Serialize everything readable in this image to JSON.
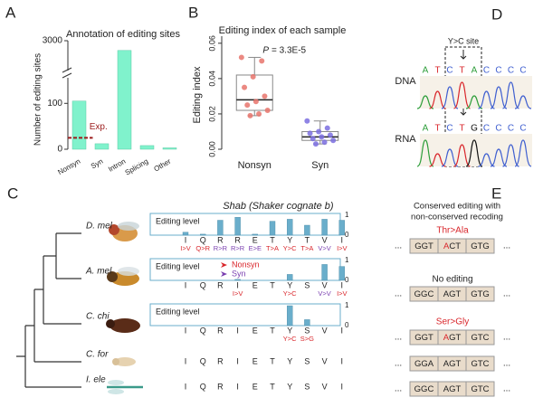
{
  "panel_letters": [
    "A",
    "B",
    "C",
    "D",
    "E"
  ],
  "chart_data": [
    {
      "type": "bar",
      "title": "Annotation of editing sites",
      "y_label": "Number of editing sites",
      "categories": [
        "Nonsyn",
        "Syn",
        "Intron",
        "Splicing",
        "Other"
      ],
      "values": [
        105,
        12,
        2800,
        8,
        3
      ],
      "color": "#80f2cc",
      "ylim": [
        0,
        3000
      ],
      "ybreak": [
        140,
        2500
      ],
      "yticks": [
        0,
        100,
        3000
      ],
      "expected": {
        "label": "Exp.",
        "value": 25,
        "color": "#9b1c1c"
      }
    },
    {
      "type": "box",
      "title": "Editing index of each sample",
      "y_label": "Editing index",
      "annotation": [
        "P",
        "= 3.3E-5"
      ],
      "ylim": [
        0,
        0.064
      ],
      "yticks": [
        {
          "value": 0,
          "label": "0.00"
        },
        0.02,
        0.04,
        0.06
      ],
      "series": [
        {
          "name": "Nonsyn",
          "color": "#e8746c",
          "values": [
            0.052,
            0.05,
            0.041,
            0.035,
            0.03,
            0.027,
            0.025,
            0.022,
            0.02,
            0.019
          ],
          "box": {
            "min": 0.019,
            "q1": 0.022,
            "median": 0.028,
            "q3": 0.042,
            "max": 0.052
          }
        },
        {
          "name": "Syn",
          "color": "#7b6fe0",
          "values": [
            0.016,
            0.012,
            0.01,
            0.009,
            0.008,
            0.007,
            0.006,
            0.005,
            0.004,
            0.003
          ],
          "box": {
            "min": 0.003,
            "q1": 0.005,
            "median": 0.007,
            "q3": 0.01,
            "max": 0.016
          }
        }
      ]
    }
  ],
  "panel_c": {
    "title": "Shab",
    "subtitle": "(Shaker cognate b)",
    "axis_label": "Editing level",
    "ylim": [
      0,
      1
    ],
    "yticks": [
      0,
      1
    ],
    "bar_color": "#6aaecb",
    "legend": [
      {
        "name": "Nonsyn",
        "color": "#d9262b"
      },
      {
        "name": "Syn",
        "color": "#7a3fb0"
      }
    ],
    "species": [
      {
        "name": "D. mel",
        "residues": [
          "I",
          "Q",
          "R",
          "R",
          "E",
          "T",
          "Y",
          "T",
          "V",
          "I"
        ],
        "edits": [
          {
            "position": 0,
            "label": "I>V",
            "value": 0.15,
            "color": "#d9262b"
          },
          {
            "position": 1,
            "label": "Q>R",
            "value": 0.05,
            "color": "#d9262b"
          },
          {
            "position": 2,
            "label": "R>R",
            "value": 0.75,
            "color": "#7a3fb0"
          },
          {
            "position": 3,
            "label": "R>R",
            "value": 0.9,
            "color": "#7a3fb0"
          },
          {
            "position": 4,
            "label": "E>E",
            "value": 0.05,
            "color": "#7a3fb0"
          },
          {
            "position": 5,
            "label": "T>A",
            "value": 0.7,
            "color": "#d9262b"
          },
          {
            "position": 6,
            "label": "Y>C",
            "value": 0.8,
            "color": "#d9262b"
          },
          {
            "position": 7,
            "label": "T>A",
            "value": 0.5,
            "color": "#d9262b"
          },
          {
            "position": 8,
            "label": "V>V",
            "value": 0.8,
            "color": "#7a3fb0"
          },
          {
            "position": 9,
            "label": "I>V",
            "value": 0.75,
            "color": "#d9262b"
          }
        ]
      },
      {
        "name": "A. mel",
        "residues": [
          "I",
          "Q",
          "R",
          "I",
          "E",
          "T",
          "Y",
          "S",
          "V",
          "I"
        ],
        "edits": [
          {
            "position": 3,
            "label": "I>V",
            "value": 0.05,
            "color": "#d9262b"
          },
          {
            "position": 6,
            "label": "Y>C",
            "value": 0.3,
            "color": "#d9262b"
          },
          {
            "position": 8,
            "label": "V>V",
            "value": 0.8,
            "color": "#7a3fb0"
          },
          {
            "position": 9,
            "label": "I>V",
            "value": 0.7,
            "color": "#d9262b"
          }
        ]
      },
      {
        "name": "C. chi",
        "residues": [
          "I",
          "Q",
          "R",
          "I",
          "E",
          "T",
          "Y",
          "S",
          "V",
          "I"
        ],
        "edits": [
          {
            "position": 6,
            "label": "Y>C",
            "value": 1.0,
            "color": "#d9262b"
          },
          {
            "position": 7,
            "label": "S>G",
            "value": 0.3,
            "color": "#d9262b"
          }
        ]
      },
      {
        "name": "C. for",
        "residues": [
          "I",
          "Q",
          "R",
          "I",
          "E",
          "T",
          "Y",
          "S",
          "V",
          "I"
        ]
      },
      {
        "name": "I. ele",
        "residues": [
          "I",
          "Q",
          "R",
          "I",
          "E",
          "T",
          "Y",
          "S",
          "V",
          "I"
        ]
      }
    ]
  },
  "panel_d": {
    "site_label": "Y>C site",
    "base_colors": {
      "A": "#2e9e3a",
      "T": "#d9262b",
      "C": "#3f5fd0",
      "G": "#111111"
    },
    "rows": [
      {
        "name": "DNA",
        "bases": [
          "A",
          "T",
          "C",
          "T",
          "A",
          "C",
          "C",
          "C",
          "C"
        ]
      },
      {
        "name": "RNA",
        "bases": [
          "A",
          "T",
          "C",
          "T",
          "G",
          "C",
          "C",
          "C",
          "C"
        ]
      }
    ]
  },
  "panel_e": {
    "title": [
      "Conserved editing with",
      "non-conserved recoding"
    ],
    "ellipsis": "...",
    "edit_color": "#d9262b",
    "box_color": "#e9dccb",
    "rows": [
      {
        "label": "Thr>Ala",
        "label_color": "#d9262b",
        "edit_codon": 1,
        "codons": [
          [
            "GGT"
          ],
          [
            "A",
            "CT"
          ],
          [
            "GTG"
          ]
        ]
      },
      {
        "label": "No editing",
        "label_color": "#222222",
        "codons": [
          [
            "GGC"
          ],
          [
            "AGT"
          ],
          [
            "GTG"
          ]
        ]
      },
      {
        "label": "Ser>Gly",
        "label_color": "#d9262b",
        "edit_codon": 1,
        "codons": [
          [
            "GGT"
          ],
          [
            "A",
            "GT"
          ],
          [
            "GTC"
          ]
        ]
      },
      {
        "codons": [
          [
            "GGA"
          ],
          [
            "AGT"
          ],
          [
            "GTC"
          ]
        ]
      },
      {
        "codons": [
          [
            "GGC"
          ],
          [
            "AGT"
          ],
          [
            "GTC"
          ]
        ]
      }
    ]
  }
}
